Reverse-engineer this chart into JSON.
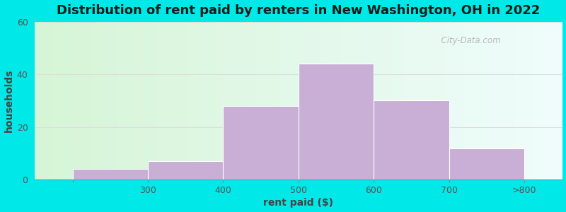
{
  "categories": [
    "300",
    "400",
    "500",
    "600",
    "700",
    ">800"
  ],
  "values": [
    4,
    7,
    28,
    44,
    30,
    12
  ],
  "bar_color": "#c9aed6",
  "bar_edgecolor": "#ffffff",
  "title": "Distribution of rent paid by renters in New Washington, OH in 2022",
  "xlabel": "rent paid ($)",
  "ylabel": "households",
  "ylim": [
    0,
    60
  ],
  "yticks": [
    0,
    20,
    40,
    60
  ],
  "title_fontsize": 13,
  "axis_label_fontsize": 10,
  "tick_fontsize": 9,
  "bg_outer": "#00e8e8",
  "bg_left_color": "#d6f5d6",
  "bg_right_color": "#f0fbfb",
  "watermark": "  City-Data.com",
  "bar_width": 1.0,
  "tick_positions": [
    0,
    1,
    2,
    3,
    4,
    5,
    6
  ],
  "tick_labels": [
    "",
    "300",
    "400",
    "500",
    "600",
    "700",
    ">800"
  ]
}
